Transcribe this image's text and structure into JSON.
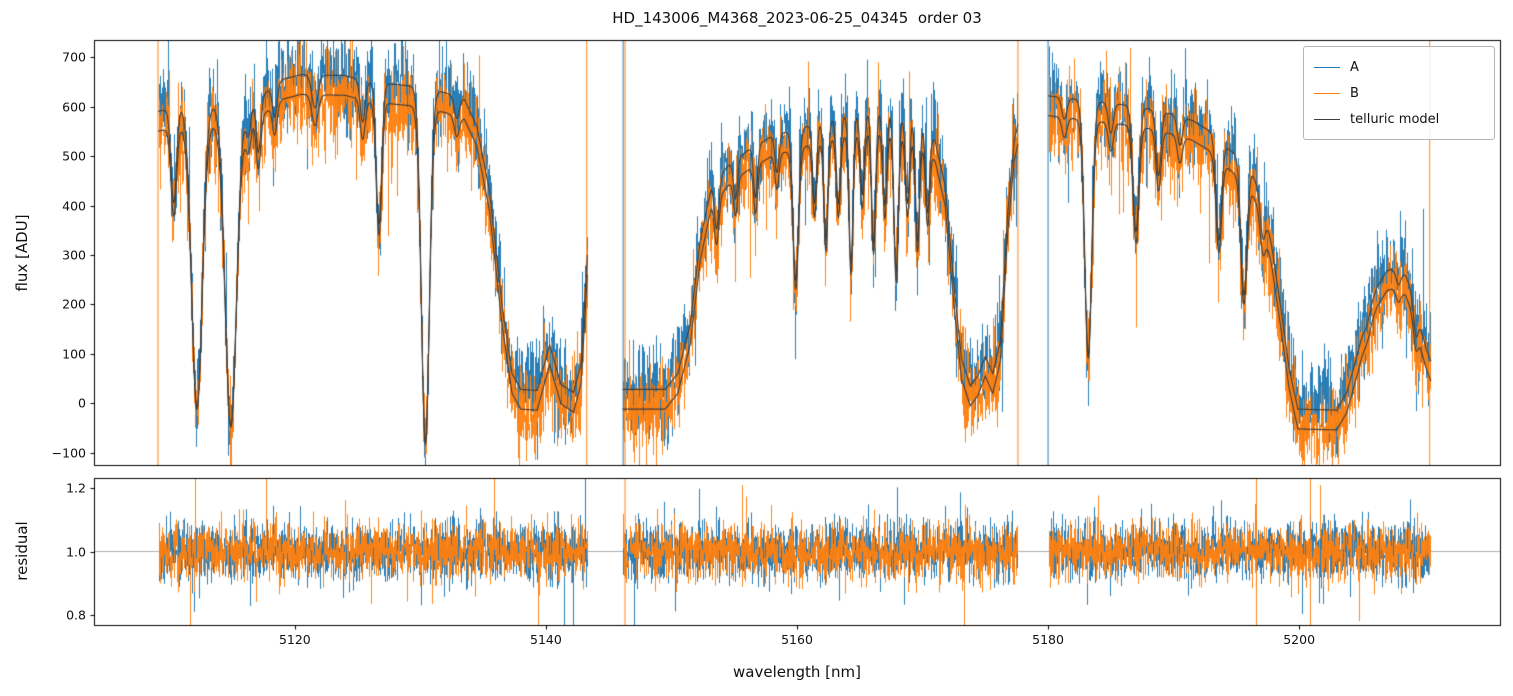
{
  "chart_data": {
    "type": "line",
    "title": "HD_143006_M4368_2023-06-25_04345  order 03",
    "xlabel": "wavelength [nm]",
    "xlim": [
      5104,
      5216
    ],
    "xticks": [
      5120,
      5140,
      5160,
      5180,
      5200
    ],
    "panels": [
      {
        "name": "flux",
        "ylabel": "flux [ADU]",
        "ylim": [
          -125,
          735
        ],
        "yticks": [
          -100,
          0,
          100,
          200,
          300,
          400,
          500,
          600,
          700
        ],
        "tick_decimals": 0
      },
      {
        "name": "residual",
        "ylabel": "residual",
        "ylim": [
          0.77,
          1.23
        ],
        "yticks": [
          0.8,
          1.0,
          1.2
        ],
        "tick_decimals": 1,
        "hline": 1.0
      }
    ],
    "legend": [
      {
        "label": "A",
        "color": "#1f77b4"
      },
      {
        "label": "B",
        "color": "#ff7f0e"
      },
      {
        "label": "telluric model",
        "color": "#3d3d3d"
      }
    ],
    "colors": {
      "a": "#1f77b4",
      "b": "#ff7f0e",
      "model": "#3d3d3d",
      "frame": "#000000",
      "hline": "#999999",
      "background": "#ffffff"
    },
    "segments": [
      [
        5109.1,
        5143.3
      ],
      [
        5146.1,
        5177.6
      ],
      [
        5180.0,
        5210.5
      ]
    ],
    "model_offset_b": -40,
    "noise": {
      "flux_std": 45,
      "flux_spike_prob": 0.012,
      "flux_spike_amp": 420,
      "residual_mean": 1.0,
      "residual_std": 0.045,
      "residual_spike_prob": 0.008,
      "residual_spike_amp": 0.5
    },
    "continuum": [
      [
        5109.0,
        590
      ],
      [
        5111.0,
        600
      ],
      [
        5113.5,
        605
      ],
      [
        5116.0,
        600
      ],
      [
        5117.5,
        625
      ],
      [
        5119.0,
        655
      ],
      [
        5120.5,
        665
      ],
      [
        5124.0,
        663
      ],
      [
        5126.0,
        650
      ],
      [
        5128.0,
        645
      ],
      [
        5130.0,
        640
      ],
      [
        5132.0,
        628
      ],
      [
        5133.5,
        615
      ],
      [
        5134.5,
        560
      ],
      [
        5135.5,
        430
      ],
      [
        5136.5,
        200
      ],
      [
        5137.3,
        60
      ],
      [
        5138.0,
        28
      ],
      [
        5139.3,
        26
      ],
      [
        5140.3,
        118
      ],
      [
        5141.2,
        38
      ],
      [
        5142.2,
        22
      ],
      [
        5142.8,
        80
      ],
      [
        5143.3,
        300
      ],
      [
        5146.1,
        28
      ],
      [
        5149.5,
        28
      ],
      [
        5150.5,
        60
      ],
      [
        5151.5,
        160
      ],
      [
        5152.3,
        330
      ],
      [
        5153.2,
        440
      ],
      [
        5154.5,
        480
      ],
      [
        5156.0,
        510
      ],
      [
        5158.0,
        540
      ],
      [
        5160.0,
        555
      ],
      [
        5162.0,
        568
      ],
      [
        5164.0,
        582
      ],
      [
        5166.0,
        590
      ],
      [
        5167.5,
        590
      ],
      [
        5169.0,
        578
      ],
      [
        5170.2,
        560
      ],
      [
        5171.0,
        530
      ],
      [
        5171.8,
        440
      ],
      [
        5172.5,
        240
      ],
      [
        5173.1,
        90
      ],
      [
        5173.8,
        35
      ],
      [
        5174.4,
        55
      ],
      [
        5175.0,
        95
      ],
      [
        5175.6,
        60
      ],
      [
        5176.2,
        125
      ],
      [
        5176.8,
        390
      ],
      [
        5177.3,
        530
      ],
      [
        5177.6,
        565
      ],
      [
        5180.0,
        622
      ],
      [
        5182.0,
        616
      ],
      [
        5184.0,
        610
      ],
      [
        5186.0,
        604
      ],
      [
        5188.0,
        596
      ],
      [
        5190.0,
        584
      ],
      [
        5191.5,
        572
      ],
      [
        5192.8,
        552
      ],
      [
        5194.0,
        522
      ],
      [
        5195.2,
        498
      ],
      [
        5196.2,
        468
      ],
      [
        5197.0,
        420
      ],
      [
        5197.8,
        320
      ],
      [
        5198.5,
        200
      ],
      [
        5199.2,
        70
      ],
      [
        5199.9,
        -12
      ],
      [
        5203.0,
        -14
      ],
      [
        5203.8,
        22
      ],
      [
        5204.6,
        95
      ],
      [
        5205.4,
        175
      ],
      [
        5206.2,
        235
      ],
      [
        5207.0,
        268
      ],
      [
        5207.8,
        275
      ],
      [
        5208.5,
        258
      ],
      [
        5209.1,
        215
      ],
      [
        5209.7,
        150
      ],
      [
        5210.1,
        112
      ],
      [
        5210.5,
        85
      ]
    ],
    "absorption_lines": [
      [
        5110.35,
        0.32,
        0.22
      ],
      [
        5112.2,
        1.02,
        0.42
      ],
      [
        5114.9,
        1.08,
        0.45
      ],
      [
        5116.3,
        0.1,
        0.2
      ],
      [
        5117.1,
        0.18,
        0.18
      ],
      [
        5118.4,
        0.1,
        0.18
      ],
      [
        5121.6,
        0.1,
        0.25
      ],
      [
        5125.4,
        0.13,
        0.2
      ],
      [
        5126.7,
        0.44,
        0.22
      ],
      [
        5130.4,
        1.13,
        0.32
      ],
      [
        5132.9,
        0.07,
        0.2
      ],
      [
        5153.6,
        0.22,
        0.18
      ],
      [
        5155.1,
        0.16,
        0.16
      ],
      [
        5156.7,
        0.2,
        0.16
      ],
      [
        5158.4,
        0.14,
        0.16
      ],
      [
        5159.9,
        0.55,
        0.22
      ],
      [
        5161.4,
        0.28,
        0.16
      ],
      [
        5162.3,
        0.42,
        0.16
      ],
      [
        5163.3,
        0.3,
        0.16
      ],
      [
        5164.3,
        0.52,
        0.16
      ],
      [
        5165.2,
        0.28,
        0.16
      ],
      [
        5166.1,
        0.45,
        0.16
      ],
      [
        5167.0,
        0.32,
        0.16
      ],
      [
        5167.9,
        0.55,
        0.18
      ],
      [
        5168.8,
        0.3,
        0.16
      ],
      [
        5169.6,
        0.42,
        0.16
      ],
      [
        5170.4,
        0.3,
        0.16
      ],
      [
        5181.3,
        0.07,
        0.2
      ],
      [
        5183.2,
        0.84,
        0.28
      ],
      [
        5185.0,
        0.1,
        0.2
      ],
      [
        5187.0,
        0.42,
        0.24
      ],
      [
        5188.8,
        0.22,
        0.2
      ],
      [
        5190.5,
        0.1,
        0.2
      ],
      [
        5193.6,
        0.38,
        0.22
      ],
      [
        5195.6,
        0.55,
        0.24
      ],
      [
        5197.1,
        0.18,
        0.2
      ],
      [
        5205.4,
        0.1,
        0.2
      ],
      [
        5207.9,
        0.12,
        0.2
      ],
      [
        5209.3,
        0.3,
        0.18
      ]
    ],
    "spikes": [
      {
        "x": 5109.1,
        "series": "B",
        "panel": "flux"
      },
      {
        "x": 5143.25,
        "series": "B",
        "panel": "flux"
      },
      {
        "x": 5146.15,
        "series": "A",
        "panel": "flux"
      },
      {
        "x": 5146.3,
        "series": "B",
        "panel": "flux"
      },
      {
        "x": 5177.6,
        "series": "B",
        "panel": "flux"
      },
      {
        "x": 5180.0,
        "series": "A",
        "panel": "flux"
      },
      {
        "x": 5210.4,
        "series": "B",
        "panel": "flux"
      },
      {
        "x": 5146.3,
        "series": "B",
        "panel": "residual"
      },
      {
        "x": 5196.6,
        "series": "B",
        "panel": "residual"
      },
      {
        "x": 5200.9,
        "series": "B",
        "panel": "residual"
      }
    ]
  }
}
